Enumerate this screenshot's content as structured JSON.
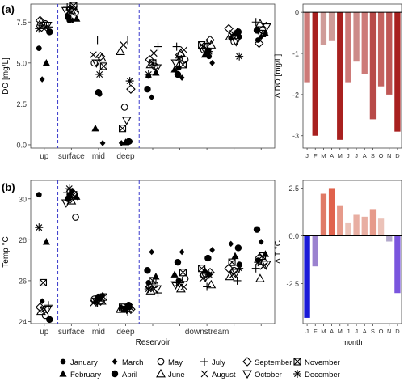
{
  "panel_labels": {
    "a": "(a)",
    "b": "(b)"
  },
  "months": [
    "January",
    "February",
    "March",
    "April",
    "May",
    "June",
    "July",
    "August",
    "September",
    "October",
    "November",
    "December"
  ],
  "month_initials": [
    "J",
    "F",
    "M",
    "A",
    "M",
    "J",
    "J",
    "A",
    "S",
    "O",
    "N",
    "D"
  ],
  "month_symbols": [
    "filled-circle",
    "filled-triangle",
    "filled-diamond",
    "filled-circle-large",
    "open-circle",
    "open-triangle",
    "plus",
    "cross",
    "open-diamond",
    "open-down-triangle",
    "boxed-x",
    "asterisk"
  ],
  "legend_placement": "bottom",
  "chart_data": [
    {
      "id": "do-scatter",
      "type": "scatter",
      "ylabel": "DO [mg/L]",
      "ylim": [
        -0.2,
        8.6
      ],
      "yticks": [
        0.0,
        2.5,
        5.0,
        7.5
      ],
      "ytick_labels": [
        "0.0",
        "2.5",
        "5.0",
        "7.5"
      ],
      "categories": [
        "up",
        "surface",
        "mid",
        "deep",
        "",
        "",
        "",
        "",
        ""
      ],
      "grid": false,
      "separators_after": [
        "up",
        "deep"
      ],
      "series": [
        {
          "name": "January",
          "values": [
            5.9,
            7.6,
            3.1,
            0.2,
            4.2,
            4.7,
            5.4,
            6.6,
            6.4
          ]
        },
        {
          "name": "February",
          "values": [
            5.0,
            7.7,
            1.0,
            0.15,
            4.4,
            4.6,
            5.5,
            6.8,
            6.8
          ]
        },
        {
          "name": "March",
          "values": [
            4.0,
            7.6,
            0.1,
            0.1,
            2.9,
            4.1,
            5.0,
            6.5,
            6.6
          ]
        },
        {
          "name": "April",
          "values": [
            6.9,
            7.8,
            3.2,
            0.2,
            3.4,
            4.3,
            5.7,
            6.9,
            7.0
          ]
        },
        {
          "name": "May",
          "values": [
            7.4,
            8.1,
            5.0,
            2.3,
            4.8,
            5.2,
            5.8,
            6.3,
            6.8
          ]
        },
        {
          "name": "June",
          "values": [
            7.5,
            8.2,
            5.3,
            5.7,
            4.9,
            5.6,
            6.1,
            6.6,
            7.4
          ]
        },
        {
          "name": "July",
          "values": [
            7.2,
            8.4,
            6.4,
            6.4,
            6.0,
            6.0,
            6.2,
            6.9,
            7.5
          ]
        },
        {
          "name": "August",
          "values": [
            7.1,
            8.3,
            5.5,
            6.1,
            5.6,
            5.8,
            6.0,
            6.8,
            7.3
          ]
        },
        {
          "name": "September",
          "values": [
            7.6,
            8.3,
            5.4,
            3.4,
            5.2,
            5.5,
            6.4,
            7.1,
            6.2
          ]
        },
        {
          "name": "October",
          "values": [
            7.3,
            8.2,
            5.0,
            1.5,
            4.7,
            5.0,
            5.7,
            6.3,
            7.2
          ]
        },
        {
          "name": "November",
          "values": [
            7.3,
            8.5,
            4.8,
            1.0,
            5.0,
            4.9,
            6.1,
            6.7,
            6.8
          ]
        },
        {
          "name": "December",
          "values": [
            7.1,
            8.2,
            4.3,
            3.9,
            4.3,
            5.3,
            5.7,
            5.4,
            7.0
          ]
        }
      ]
    },
    {
      "id": "do-delta-bars",
      "type": "bar",
      "ylabel": "Δ DO [mg/L]",
      "ylim": [
        -3.3,
        0.2
      ],
      "yticks": [
        0,
        -1,
        -2,
        -3
      ],
      "ytick_labels": [
        "0",
        "-1",
        "-2",
        "-3"
      ],
      "categories": [
        "J",
        "F",
        "M",
        "A",
        "M",
        "J",
        "J",
        "A",
        "S",
        "O",
        "N",
        "D"
      ],
      "values": [
        -1.7,
        -3.0,
        -0.8,
        -0.7,
        -3.1,
        -1.7,
        -1.2,
        -1.5,
        -2.6,
        -1.8,
        -2.0,
        -2.9
      ],
      "colors": [
        "#cd7a78",
        "#a8201f",
        "#cf9b98",
        "#cf9b98",
        "#a8201f",
        "#cd7a78",
        "#cd8a88",
        "#cd7a78",
        "#b84a48",
        "#c46360",
        "#bf5755",
        "#a8201f"
      ],
      "xlabel": ""
    },
    {
      "id": "temp-scatter",
      "type": "scatter",
      "ylabel": "Temp °C",
      "xlabel": "Reservoir",
      "ylim": [
        23.9,
        30.9
      ],
      "yticks": [
        24,
        26,
        28,
        30
      ],
      "ytick_labels": [
        "24",
        "26",
        "28",
        "30"
      ],
      "categories": [
        "up",
        "surface",
        "mid",
        "deep",
        "",
        "",
        "downstream",
        "",
        ""
      ],
      "grid": false,
      "separators_after": [
        "up",
        "deep"
      ],
      "series": [
        {
          "name": "January",
          "values": [
            30.2,
            30.2,
            25.1,
            24.7,
            25.9,
            26.0,
            26.3,
            26.8,
            27.0
          ]
        },
        {
          "name": "February",
          "values": [
            27.9,
            30.1,
            25.0,
            24.6,
            26.2,
            26.3,
            26.5,
            27.2,
            27.3
          ]
        },
        {
          "name": "March",
          "values": [
            25.0,
            30.4,
            25.3,
            24.7,
            27.4,
            27.4,
            27.5,
            27.8,
            27.9
          ]
        },
        {
          "name": "April",
          "values": [
            24.1,
            30.0,
            25.2,
            24.8,
            26.5,
            26.9,
            27.1,
            27.6,
            28.5
          ]
        },
        {
          "name": "May",
          "values": [
            24.3,
            29.1,
            25.1,
            24.6,
            25.8,
            26.1,
            26.3,
            26.5,
            26.9
          ]
        },
        {
          "name": "June",
          "values": [
            24.5,
            29.9,
            25.0,
            24.6,
            25.5,
            25.6,
            25.8,
            26.2,
            26.1
          ]
        },
        {
          "name": "July",
          "values": [
            24.8,
            30.3,
            24.9,
            24.5,
            25.4,
            25.9,
            25.7,
            26.0,
            26.6
          ]
        },
        {
          "name": "August",
          "values": [
            24.6,
            30.1,
            24.9,
            24.6,
            25.6,
            25.7,
            26.1,
            26.3,
            26.7
          ]
        },
        {
          "name": "September",
          "values": [
            24.7,
            30.0,
            25.0,
            24.6,
            25.7,
            25.9,
            26.4,
            26.6,
            27.1
          ]
        },
        {
          "name": "October",
          "values": [
            24.6,
            29.8,
            25.0,
            24.6,
            25.6,
            25.8,
            26.2,
            26.4,
            26.8
          ]
        },
        {
          "name": "November",
          "values": [
            25.9,
            30.2,
            25.2,
            24.7,
            26.0,
            26.4,
            26.6,
            26.9,
            27.2
          ]
        },
        {
          "name": "December",
          "values": [
            28.6,
            30.5,
            25.1,
            24.7,
            25.6,
            25.9,
            26.3,
            26.6,
            26.9
          ]
        }
      ]
    },
    {
      "id": "temp-delta-bars",
      "type": "bar",
      "ylabel": "Δ T °C",
      "xlabel": "month",
      "ylim": [
        -4.6,
        2.9
      ],
      "yticks": [
        2.5,
        0.0,
        -2.5
      ],
      "ytick_labels": [
        "2.5",
        "0.0",
        "-2.5"
      ],
      "categories": [
        "J",
        "F",
        "M",
        "A",
        "M",
        "J",
        "J",
        "A",
        "S",
        "O",
        "N",
        "D"
      ],
      "values": [
        -4.3,
        -1.6,
        2.2,
        2.5,
        1.6,
        0.7,
        1.1,
        1.0,
        1.4,
        0.9,
        -0.3,
        -3.0
      ],
      "colors": [
        "#1a1ad8",
        "#9b82cf",
        "#e07a66",
        "#e0624c",
        "#e69a8a",
        "#ebc2b8",
        "#e8aea2",
        "#e8aea2",
        "#e69a8a",
        "#ebc2b8",
        "#b2a8cc",
        "#7a55de"
      ]
    }
  ]
}
